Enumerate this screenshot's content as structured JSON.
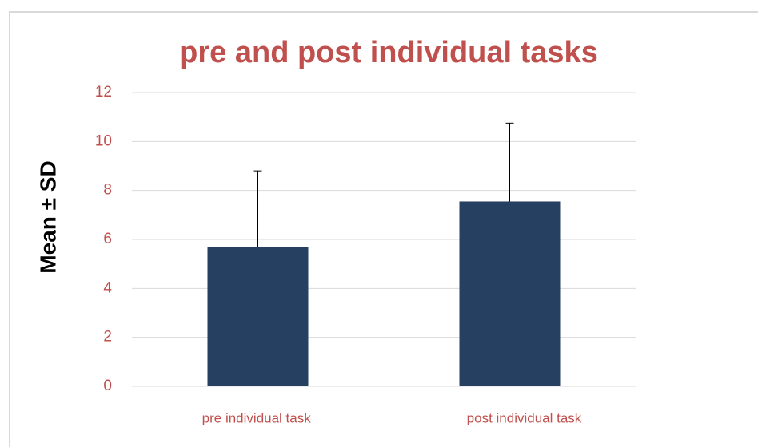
{
  "chart_data": {
    "type": "bar",
    "title": "pre and post individual tasks",
    "y_label": "Mean ± SD",
    "categories": [
      "pre individual task",
      "post individual task"
    ],
    "values": [
      5.7,
      7.55
    ],
    "errors": [
      3.1,
      3.2
    ],
    "color": "#264061",
    "ylim": [
      0,
      12
    ],
    "yticks": [
      0,
      2,
      4,
      6,
      8,
      10,
      12
    ],
    "grid": true
  }
}
